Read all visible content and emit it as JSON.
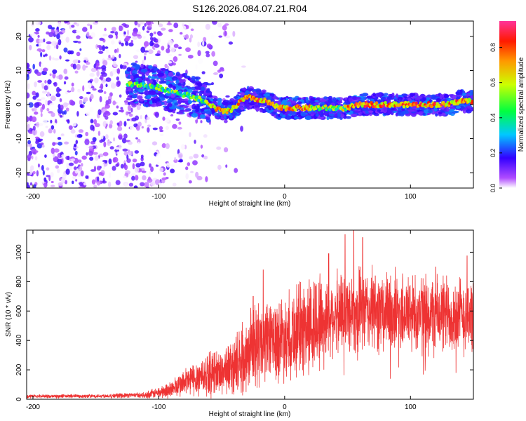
{
  "title": "S126.2026.084.07.21.R04",
  "chart_data": [
    {
      "type": "heatmap",
      "title": "S126.2026.084.07.21.R04",
      "xlabel": "Height of straight line (km)",
      "ylabel": "Frequency (Hz)",
      "xlim": [
        -205,
        150
      ],
      "ylim": [
        -24.5,
        24.5
      ],
      "x_ticks": [
        -200,
        -100,
        0,
        100
      ],
      "x_tick_labels": [
        "-200",
        "-100",
        "0",
        "100"
      ],
      "y_ticks": [
        -20,
        -10,
        0,
        10,
        20
      ],
      "y_tick_labels": [
        "-20",
        "-10",
        "0",
        "10",
        "20"
      ],
      "colorbar": {
        "label": "Normalized spectral amplitude",
        "range": [
          0,
          0.95
        ],
        "ticks": [
          0.0,
          0.2,
          0.4,
          0.6,
          0.8
        ],
        "tick_labels": [
          "0.0",
          "0.2",
          "0.4",
          "0.6",
          "0.8"
        ]
      },
      "ridge_frequency_track": {
        "x": [
          -120,
          -100,
          -80,
          -70,
          -60,
          -55,
          -50,
          -45,
          -40,
          -35,
          -30,
          -25,
          -20,
          -15,
          -10,
          -5,
          0,
          10,
          20,
          30,
          40,
          50,
          60,
          70,
          80,
          90,
          100,
          110,
          120,
          130,
          140,
          150
        ],
        "y": [
          6,
          5,
          3,
          2,
          0,
          -1,
          -2,
          -2,
          -1,
          1,
          2,
          2,
          1,
          1,
          0,
          -1,
          -1,
          -1,
          -1,
          -1,
          -1,
          -1,
          0,
          0,
          0,
          0,
          0,
          0,
          0,
          0,
          1,
          1
        ]
      }
    },
    {
      "type": "line",
      "title": "",
      "xlabel": "Height of straight line (km)",
      "ylabel": "SNR (10 * v/v)",
      "xlim": [
        -205,
        150
      ],
      "ylim": [
        0,
        1150
      ],
      "x_ticks": [
        -200,
        -100,
        0,
        100
      ],
      "x_tick_labels": [
        "-200",
        "-100",
        "0",
        "100"
      ],
      "y_ticks": [
        0,
        200,
        400,
        600,
        800,
        1000
      ],
      "y_tick_labels": [
        "0",
        "200",
        "400",
        "600",
        "800",
        "1000"
      ],
      "color": "#ee3333",
      "envelope": {
        "x": [
          -205,
          -150,
          -110,
          -100,
          -90,
          -80,
          -70,
          -60,
          -50,
          -40,
          -30,
          -20,
          -10,
          0,
          10,
          20,
          30,
          40,
          50,
          60,
          70,
          80,
          90,
          100,
          110,
          120,
          130,
          140,
          150
        ],
        "y": [
          20,
          22,
          30,
          45,
          70,
          110,
          150,
          175,
          190,
          230,
          300,
          380,
          400,
          430,
          470,
          500,
          540,
          580,
          600,
          600,
          600,
          590,
          590,
          590,
          580,
          570,
          580,
          570,
          570
        ]
      },
      "peaks": [
        {
          "x": -17,
          "y": 880
        },
        {
          "x": -25,
          "y": 700
        },
        {
          "x": 55,
          "y": 1150
        },
        {
          "x": 48,
          "y": 1120
        },
        {
          "x": 62,
          "y": 1100
        },
        {
          "x": 35,
          "y": 990
        },
        {
          "x": 145,
          "y": 975
        },
        {
          "x": 120,
          "y": 900
        }
      ]
    }
  ]
}
